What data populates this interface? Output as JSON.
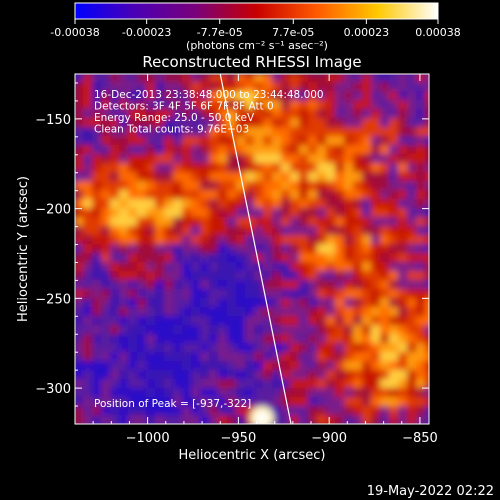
{
  "colorbar": {
    "tick_labels": [
      "-0.00038",
      "-0.00023",
      "-7.7e-05",
      "7.7e-05",
      "0.00023",
      "0.00038"
    ],
    "tick_values": [
      -0.00038,
      -0.00023,
      -7.7e-05,
      7.7e-05,
      0.00023,
      0.00038
    ],
    "range": [
      -0.00038,
      0.00038
    ],
    "unit_label": "(photons cm⁻² s⁻¹ asec⁻²)",
    "colormap": [
      "#0000ff",
      "#4b00b4",
      "#7a007a",
      "#c80000",
      "#ff5a00",
      "#ffc800",
      "#ffffff"
    ]
  },
  "chart_data": {
    "type": "heatmap",
    "title": "Reconstructed RHESSI Image",
    "xlabel": "Heliocentric X (arcsec)",
    "ylabel": "Heliocentric Y (arcsec)",
    "xlim": [
      -1040,
      -845
    ],
    "ylim": [
      -320,
      -125
    ],
    "xticks": [
      -1000,
      -950,
      -900,
      -850
    ],
    "xtick_labels": [
      "−1000",
      "−950",
      "−900",
      "−850"
    ],
    "yticks": [
      -300,
      -250,
      -200,
      -150
    ],
    "ytick_labels": [
      "−300",
      "−250",
      "−200",
      "−150"
    ],
    "limb_line": [
      [
        -960,
        -125
      ],
      [
        -921,
        -320
      ]
    ],
    "annotations": [
      "16-Dec-2013 23:38:48.000 to 23:44:48.000",
      "Detectors: 3F 4F 5F 6F 7F 8F  Att 0",
      "Energy Range: 25.0 - 50.0 keV",
      "Clean     Total counts: 9.76E+03"
    ],
    "peak_label": "Position of Peak = [-937,-322]",
    "peak_position": [
      -937,
      -322
    ]
  },
  "footer": {
    "timestamp": "19-May-2022 02:22"
  }
}
